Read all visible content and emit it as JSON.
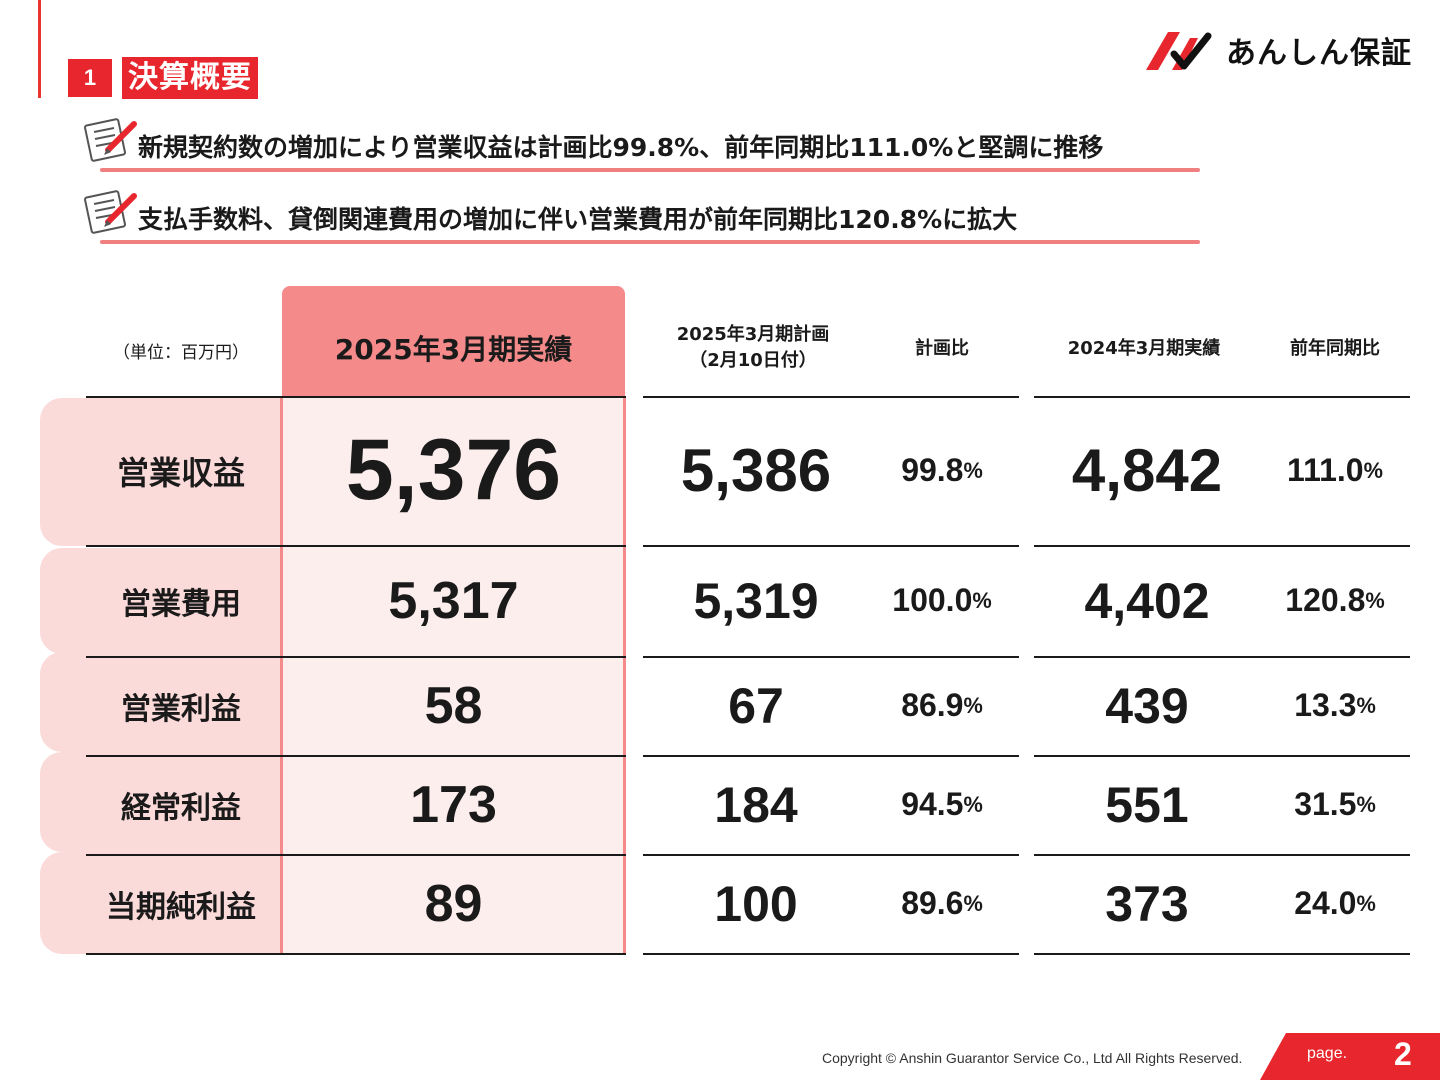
{
  "section": {
    "number": "1",
    "title": "決算概要"
  },
  "brand": {
    "name": "あんしん保証"
  },
  "points": [
    {
      "icon": "memo-pencil-icon",
      "text": "新規契約数の増加により営業収益は計画比99.8%、前年同期比111.0%と堅調に推移"
    },
    {
      "icon": "memo-pencil-icon",
      "text": "支払手数料、貸倒関連費用の増加に伴い営業費用が前年同期比120.8%に拡大"
    }
  ],
  "table": {
    "unit_label": "（単位：百万円）",
    "headers": {
      "actual_2025": "2025年3月期実績",
      "plan_2025_line1": "2025年3月期計画",
      "plan_2025_line2": "（2月10日付）",
      "vs_plan": "計画比",
      "actual_2024": "2024年3月期実績",
      "yoy": "前年同期比"
    },
    "percent_unit": "%",
    "rows": [
      {
        "label": "営業収益",
        "actual_2025": "5,376",
        "plan_2025": "5,386",
        "vs_plan": "99.8",
        "actual_2024": "4,842",
        "yoy": "111.0"
      },
      {
        "label": "営業費用",
        "actual_2025": "5,317",
        "plan_2025": "5,319",
        "vs_plan": "100.0",
        "actual_2024": "4,402",
        "yoy": "120.8"
      },
      {
        "label": "営業利益",
        "actual_2025": "58",
        "plan_2025": "67",
        "vs_plan": "86.9",
        "actual_2024": "439",
        "yoy": "13.3"
      },
      {
        "label": "経常利益",
        "actual_2025": "173",
        "plan_2025": "184",
        "vs_plan": "94.5",
        "actual_2024": "551",
        "yoy": "31.5"
      },
      {
        "label": "当期純利益",
        "actual_2025": "89",
        "plan_2025": "100",
        "vs_plan": "89.6",
        "actual_2024": "373",
        "yoy": "24.0"
      }
    ]
  },
  "footer": {
    "copyright": "Copyright © Anshin Guarantor Service Co., Ltd All Rights Reserved.",
    "page_label": "page.",
    "page_number": "2"
  },
  "colors": {
    "accent_red": "#e8262d",
    "highlight_pink": "#f48a8a",
    "light_pink": "#fdeeee"
  }
}
